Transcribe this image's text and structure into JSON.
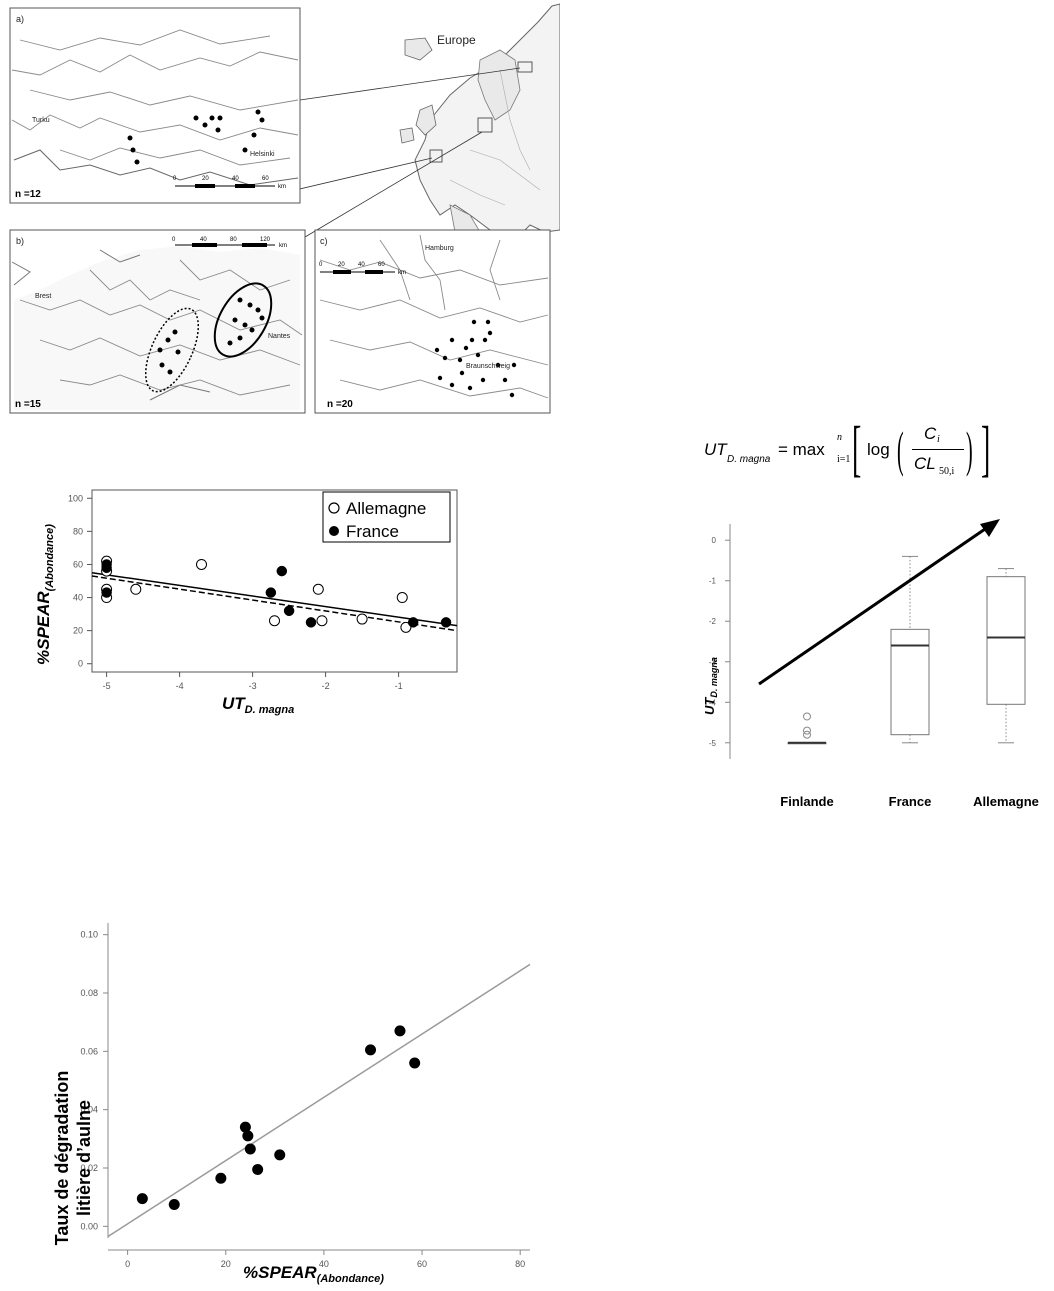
{
  "maps": {
    "europe_label": "Europe",
    "panel_a": {
      "tag": "a)",
      "n": "n =12",
      "cities": [
        "Turku",
        "Helsinki"
      ],
      "scale": [
        "0",
        "20",
        "40",
        "60",
        "km"
      ]
    },
    "panel_b": {
      "tag": "b)",
      "n": "n =15",
      "cities": [
        "Brest",
        "Nantes"
      ],
      "scale": [
        "0",
        "40",
        "80",
        "120",
        "km"
      ]
    },
    "panel_c": {
      "tag": "c)",
      "n": "n =20",
      "cities": [
        "Hamburg",
        "Braunschweig"
      ],
      "scale": [
        "0",
        "20",
        "40",
        "60",
        "km"
      ]
    }
  },
  "formula": {
    "lhs": "UT",
    "lhs_sub": "D. magna",
    "op": "= max",
    "sup": "n",
    "sub": "i=1",
    "log": "log",
    "num": "C",
    "num_sub": "i",
    "den": "CL",
    "den_sub": "50,i"
  },
  "chart_data": [
    {
      "type": "scatter",
      "xlabel": "UT",
      "xlabel_sub": "D. magna",
      "ylabel": "%SPEAR",
      "ylabel_sub": "(Abondance)",
      "xlim": [
        -5.2,
        -0.2
      ],
      "ylim": [
        -5,
        105
      ],
      "xticks": [
        "-5",
        "-4",
        "-3",
        "-2",
        "-1"
      ],
      "xtick_values": [
        -5,
        -4,
        -3,
        -2,
        -1
      ],
      "yticks": [
        "0",
        "20",
        "40",
        "60",
        "80",
        "100"
      ],
      "ytick_values": [
        0,
        20,
        40,
        60,
        80,
        100
      ],
      "legend_position": "top-right",
      "series": [
        {
          "name": "Allemagne",
          "marker": "open-circle",
          "x": [
            -5.0,
            -5.0,
            -5.0,
            -5.0,
            -4.6,
            -3.7,
            -2.7,
            -2.1,
            -2.05,
            -1.5,
            -0.95,
            -0.9
          ],
          "y": [
            62,
            56,
            40,
            45,
            45,
            60,
            26,
            45,
            26,
            27,
            40,
            22
          ]
        },
        {
          "name": "France",
          "marker": "filled-circle",
          "x": [
            -5.0,
            -5.0,
            -5.0,
            -2.75,
            -2.6,
            -2.5,
            -2.2,
            -0.8,
            -0.35
          ],
          "y": [
            60,
            58,
            43,
            43,
            56,
            32,
            25,
            25,
            25
          ]
        }
      ],
      "fit_lines": [
        {
          "style": "solid",
          "x": [
            -5.2,
            -0.2
          ],
          "y": [
            55,
            23
          ]
        },
        {
          "style": "dashed",
          "x": [
            -5.2,
            -0.2
          ],
          "y": [
            53,
            20
          ]
        }
      ]
    },
    {
      "type": "box",
      "ylabel": "UT",
      "ylabel_sub": "D. magna",
      "categories": [
        "Finlande",
        "France",
        "Allemagne"
      ],
      "ylim": [
        -5.4,
        0.4
      ],
      "yticks": [
        "0",
        "-1",
        "-2",
        "-3",
        "-4",
        "-5"
      ],
      "ytick_values": [
        0,
        -1,
        -2,
        -3,
        -4,
        -5
      ],
      "boxes": [
        {
          "min": -5,
          "q1": -5,
          "median": -5,
          "q3": -5,
          "max": -5,
          "outliers": [
            -4.35,
            -4.7,
            -4.8
          ]
        },
        {
          "min": -5,
          "q1": -4.8,
          "median": -2.6,
          "q3": -2.2,
          "max": -0.4,
          "outliers": []
        },
        {
          "min": -5,
          "q1": -4.05,
          "median": -2.4,
          "q3": -0.9,
          "max": -0.7,
          "outliers": []
        }
      ],
      "trend_arrow": true
    },
    {
      "type": "scatter",
      "xlabel": "%SPEAR",
      "xlabel_sub": "(Abondance)",
      "ylabel": "Taux de dégradation",
      "ylabel_line2": "litière d’aulne",
      "xlim": [
        -4,
        82
      ],
      "ylim": [
        -0.004,
        0.104
      ],
      "xticks": [
        "0",
        "20",
        "40",
        "60",
        "80"
      ],
      "xtick_values": [
        0,
        20,
        40,
        60,
        80
      ],
      "yticks": [
        "0.00",
        "0.02",
        "0.04",
        "0.06",
        "0.08",
        "0.10"
      ],
      "ytick_values": [
        0,
        0.02,
        0.04,
        0.06,
        0.08,
        0.1
      ],
      "series": [
        {
          "name": "",
          "marker": "filled-circle",
          "x": [
            3,
            9.5,
            19,
            24,
            24.5,
            25,
            26.5,
            31,
            49.5,
            55.5,
            58.5
          ],
          "y": [
            0.0095,
            0.0075,
            0.0165,
            0.034,
            0.031,
            0.0265,
            0.0195,
            0.0245,
            0.0605,
            0.067,
            0.056
          ]
        }
      ],
      "fit_lines": [
        {
          "style": "solid",
          "x": [
            -4,
            82
          ],
          "y": [
            -0.0035,
            0.0898
          ]
        }
      ]
    }
  ]
}
